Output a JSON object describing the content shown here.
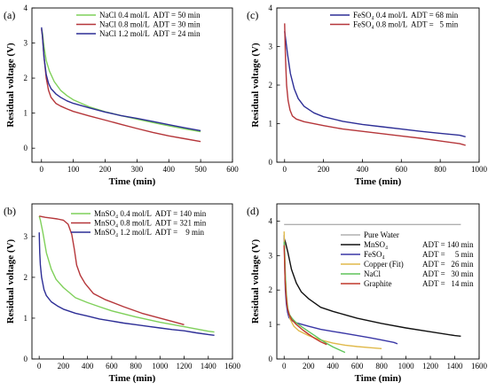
{
  "chart_data": [
    {
      "type": "line",
      "panel_label": "(a)",
      "xlabel": "Time (min)",
      "ylabel": "Residual voltage (V)",
      "xlim": [
        -30,
        600
      ],
      "ylim": [
        -0.4,
        4
      ],
      "xticks": [
        0,
        100,
        200,
        300,
        400,
        500,
        600
      ],
      "yticks": [
        0,
        1,
        2,
        3,
        4
      ],
      "legend_position": "top-right",
      "series": [
        {
          "name": "NaCl 0.4 mol/L  ADT = 50 min",
          "color": "#7fd05a",
          "points": [
            [
              0,
              3.4
            ],
            [
              3,
              3.3
            ],
            [
              8,
              2.9
            ],
            [
              15,
              2.5
            ],
            [
              25,
              2.2
            ],
            [
              40,
              1.9
            ],
            [
              60,
              1.65
            ],
            [
              80,
              1.5
            ],
            [
              100,
              1.38
            ],
            [
              150,
              1.18
            ],
            [
              200,
              1.04
            ],
            [
              250,
              0.93
            ],
            [
              300,
              0.83
            ],
            [
              350,
              0.73
            ],
            [
              400,
              0.64
            ],
            [
              450,
              0.55
            ],
            [
              500,
              0.47
            ]
          ]
        },
        {
          "name": "NaCl 0.8 mol/L  ADT = 30 min",
          "color": "#b5363a",
          "points": [
            [
              0,
              3.4
            ],
            [
              3,
              3.2
            ],
            [
              8,
              2.6
            ],
            [
              15,
              2.0
            ],
            [
              22,
              1.65
            ],
            [
              30,
              1.45
            ],
            [
              45,
              1.28
            ],
            [
              60,
              1.2
            ],
            [
              80,
              1.12
            ],
            [
              100,
              1.05
            ],
            [
              150,
              0.92
            ],
            [
              200,
              0.8
            ],
            [
              250,
              0.68
            ],
            [
              300,
              0.56
            ],
            [
              350,
              0.45
            ],
            [
              400,
              0.35
            ],
            [
              450,
              0.27
            ],
            [
              500,
              0.19
            ]
          ]
        },
        {
          "name": "NaCl 1.2 mol/L  ADT = 24 min",
          "color": "#2d2e96",
          "points": [
            [
              0,
              3.45
            ],
            [
              3,
              3.2
            ],
            [
              8,
              2.6
            ],
            [
              15,
              2.1
            ],
            [
              22,
              1.85
            ],
            [
              30,
              1.7
            ],
            [
              45,
              1.55
            ],
            [
              60,
              1.45
            ],
            [
              80,
              1.35
            ],
            [
              100,
              1.28
            ],
            [
              150,
              1.15
            ],
            [
              200,
              1.03
            ],
            [
              250,
              0.93
            ],
            [
              300,
              0.85
            ],
            [
              350,
              0.76
            ],
            [
              400,
              0.67
            ],
            [
              450,
              0.58
            ],
            [
              500,
              0.5
            ]
          ]
        }
      ]
    },
    {
      "type": "line",
      "panel_label": "(b)",
      "xlabel": "Time (min)",
      "ylabel": "Residual voltage (V)",
      "xlim": [
        -60,
        1600
      ],
      "ylim": [
        0,
        3.8
      ],
      "xticks": [
        0,
        200,
        400,
        600,
        800,
        1000,
        1200,
        1400,
        1600
      ],
      "yticks": [
        0,
        1,
        2,
        3
      ],
      "legend_position": "top-right",
      "series": [
        {
          "name": "MnSO₄ 0.4 mol/L  ADT = 140 min",
          "color": "#7fd05a",
          "points": [
            [
              0,
              3.5
            ],
            [
              10,
              3.4
            ],
            [
              30,
              3.1
            ],
            [
              60,
              2.6
            ],
            [
              100,
              2.2
            ],
            [
              140,
              1.95
            ],
            [
              200,
              1.75
            ],
            [
              300,
              1.5
            ],
            [
              400,
              1.38
            ],
            [
              500,
              1.28
            ],
            [
              600,
              1.18
            ],
            [
              800,
              1.03
            ],
            [
              1000,
              0.9
            ],
            [
              1200,
              0.79
            ],
            [
              1400,
              0.68
            ],
            [
              1450,
              0.66
            ]
          ]
        },
        {
          "name": "MnSO₄ 0.8 mol/L  ADT = 321 min",
          "color": "#b5363a",
          "points": [
            [
              0,
              3.5
            ],
            [
              50,
              3.47
            ],
            [
              100,
              3.45
            ],
            [
              150,
              3.43
            ],
            [
              200,
              3.4
            ],
            [
              240,
              3.3
            ],
            [
              270,
              3.05
            ],
            [
              290,
              2.7
            ],
            [
              310,
              2.3
            ],
            [
              340,
              2.05
            ],
            [
              380,
              1.85
            ],
            [
              450,
              1.6
            ],
            [
              550,
              1.45
            ],
            [
              700,
              1.28
            ],
            [
              850,
              1.12
            ],
            [
              1000,
              1.0
            ],
            [
              1100,
              0.92
            ],
            [
              1200,
              0.84
            ]
          ]
        },
        {
          "name": "MnSO₄ 1.2 mol/L  ADT =    9 min",
          "color": "#2d2e96",
          "points": [
            [
              0,
              3.1
            ],
            [
              5,
              2.6
            ],
            [
              10,
              2.3
            ],
            [
              20,
              2.0
            ],
            [
              40,
              1.7
            ],
            [
              60,
              1.55
            ],
            [
              100,
              1.4
            ],
            [
              150,
              1.3
            ],
            [
              200,
              1.22
            ],
            [
              300,
              1.12
            ],
            [
              400,
              1.05
            ],
            [
              500,
              0.98
            ],
            [
              600,
              0.93
            ],
            [
              700,
              0.88
            ],
            [
              800,
              0.84
            ],
            [
              900,
              0.8
            ],
            [
              1000,
              0.76
            ],
            [
              1100,
              0.72
            ],
            [
              1200,
              0.69
            ],
            [
              1300,
              0.64
            ],
            [
              1400,
              0.6
            ],
            [
              1450,
              0.58
            ]
          ]
        }
      ]
    },
    {
      "type": "line",
      "panel_label": "(c)",
      "xlabel": "Time (min)",
      "ylabel": "Residual voltage (V)",
      "xlim": [
        -40,
        1000
      ],
      "ylim": [
        0,
        4
      ],
      "xticks": [
        0,
        200,
        400,
        600,
        800,
        1000
      ],
      "yticks": [
        0,
        1,
        2,
        3,
        4
      ],
      "legend_position": "top-right",
      "series": [
        {
          "name": "FeSO₄ 0.4 mol/L  ADT = 68 min",
          "color": "#2d2e96",
          "points": [
            [
              0,
              3.4
            ],
            [
              5,
              3.2
            ],
            [
              15,
              2.8
            ],
            [
              30,
              2.3
            ],
            [
              50,
              1.9
            ],
            [
              70,
              1.65
            ],
            [
              100,
              1.45
            ],
            [
              150,
              1.28
            ],
            [
              200,
              1.18
            ],
            [
              300,
              1.06
            ],
            [
              400,
              0.98
            ],
            [
              500,
              0.92
            ],
            [
              600,
              0.86
            ],
            [
              700,
              0.8
            ],
            [
              800,
              0.75
            ],
            [
              900,
              0.7
            ],
            [
              930,
              0.66
            ]
          ]
        },
        {
          "name": "FeSO₄ 0.8 mol/L  ADT =   5 min",
          "color": "#b5363a",
          "points": [
            [
              0,
              3.6
            ],
            [
              3,
              3.0
            ],
            [
              6,
              2.5
            ],
            [
              10,
              2.0
            ],
            [
              18,
              1.6
            ],
            [
              28,
              1.35
            ],
            [
              40,
              1.2
            ],
            [
              60,
              1.12
            ],
            [
              100,
              1.05
            ],
            [
              200,
              0.95
            ],
            [
              300,
              0.86
            ],
            [
              400,
              0.8
            ],
            [
              500,
              0.74
            ],
            [
              600,
              0.68
            ],
            [
              700,
              0.62
            ],
            [
              800,
              0.55
            ],
            [
              900,
              0.48
            ],
            [
              930,
              0.44
            ]
          ]
        }
      ]
    },
    {
      "type": "line",
      "panel_label": "(d)",
      "xlabel": "Time (min)",
      "ylabel": "Residual voltage (V)",
      "xlim": [
        -60,
        1600
      ],
      "ylim": [
        0,
        4.5
      ],
      "xticks": [
        0,
        200,
        400,
        600,
        800,
        1000,
        1200,
        1400,
        1600
      ],
      "yticks": [
        0,
        1,
        2,
        3,
        4
      ],
      "legend_position": "right",
      "series": [
        {
          "name": "Pure Water",
          "adt": "",
          "color": "#b0b0b0",
          "points": [
            [
              0,
              3.9
            ],
            [
              400,
              3.9
            ],
            [
              800,
              3.9
            ],
            [
              1200,
              3.9
            ],
            [
              1450,
              3.9
            ]
          ]
        },
        {
          "name": "MnSO₄",
          "adt": "ADT = 140 min",
          "color": "#111111",
          "points": [
            [
              0,
              3.5
            ],
            [
              10,
              3.4
            ],
            [
              30,
              3.1
            ],
            [
              60,
              2.6
            ],
            [
              100,
              2.2
            ],
            [
              140,
              1.95
            ],
            [
              200,
              1.75
            ],
            [
              300,
              1.5
            ],
            [
              400,
              1.38
            ],
            [
              500,
              1.28
            ],
            [
              600,
              1.18
            ],
            [
              800,
              1.03
            ],
            [
              1000,
              0.9
            ],
            [
              1200,
              0.79
            ],
            [
              1400,
              0.68
            ],
            [
              1450,
              0.66
            ]
          ]
        },
        {
          "name": "FeSO₄",
          "adt": "ADT =     5 min",
          "color": "#3a37a6",
          "points": [
            [
              0,
              3.6
            ],
            [
              3,
              3.0
            ],
            [
              6,
              2.5
            ],
            [
              10,
              2.0
            ],
            [
              18,
              1.6
            ],
            [
              28,
              1.35
            ],
            [
              40,
              1.2
            ],
            [
              60,
              1.12
            ],
            [
              100,
              1.05
            ],
            [
              200,
              0.95
            ],
            [
              300,
              0.86
            ],
            [
              400,
              0.8
            ],
            [
              500,
              0.74
            ],
            [
              600,
              0.68
            ],
            [
              700,
              0.62
            ],
            [
              800,
              0.55
            ],
            [
              900,
              0.48
            ],
            [
              930,
              0.44
            ]
          ]
        },
        {
          "name": "Copper (Fit)",
          "adt": "ADT =   26 min",
          "color": "#e0b94a",
          "points": [
            [
              0,
              3.7
            ],
            [
              5,
              3.0
            ],
            [
              10,
              2.4
            ],
            [
              20,
              1.8
            ],
            [
              30,
              1.45
            ],
            [
              50,
              1.15
            ],
            [
              80,
              0.95
            ],
            [
              120,
              0.82
            ],
            [
              200,
              0.68
            ],
            [
              300,
              0.55
            ],
            [
              400,
              0.46
            ],
            [
              500,
              0.4
            ],
            [
              600,
              0.36
            ],
            [
              700,
              0.33
            ],
            [
              800,
              0.3
            ]
          ]
        },
        {
          "name": "NaCl",
          "adt": "ADT =   30 min",
          "color": "#5fc45a",
          "points": [
            [
              0,
              3.4
            ],
            [
              3,
              3.2
            ],
            [
              8,
              2.6
            ],
            [
              15,
              2.0
            ],
            [
              22,
              1.65
            ],
            [
              30,
              1.45
            ],
            [
              45,
              1.28
            ],
            [
              60,
              1.2
            ],
            [
              80,
              1.12
            ],
            [
              100,
              1.05
            ],
            [
              150,
              0.92
            ],
            [
              200,
              0.8
            ],
            [
              250,
              0.68
            ],
            [
              300,
              0.56
            ],
            [
              350,
              0.45
            ],
            [
              400,
              0.35
            ],
            [
              450,
              0.27
            ],
            [
              500,
              0.19
            ]
          ]
        },
        {
          "name": "Graphite",
          "adt": "ADT =   14 min",
          "color": "#c0392b",
          "points": [
            [
              0,
              3.3
            ],
            [
              4,
              2.8
            ],
            [
              8,
              2.3
            ],
            [
              14,
              1.9
            ],
            [
              25,
              1.5
            ],
            [
              40,
              1.3
            ],
            [
              60,
              1.15
            ],
            [
              100,
              1.0
            ],
            [
              150,
              0.85
            ],
            [
              200,
              0.72
            ],
            [
              250,
              0.6
            ],
            [
              300,
              0.5
            ],
            [
              350,
              0.42
            ]
          ]
        }
      ]
    }
  ]
}
